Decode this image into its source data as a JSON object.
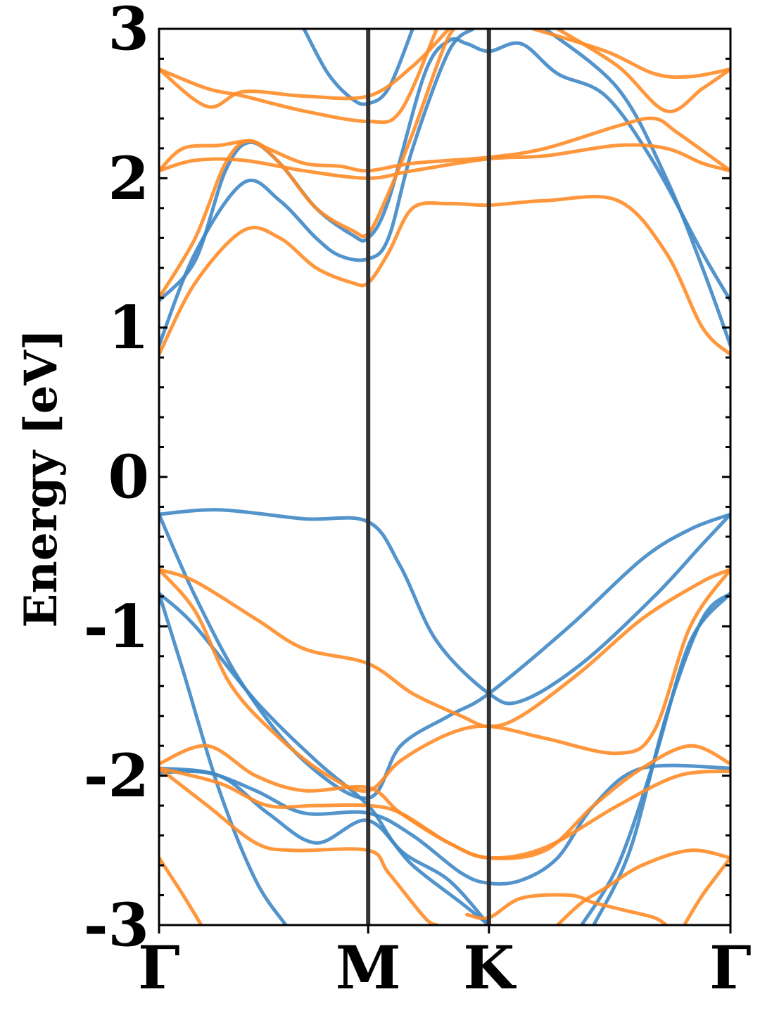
{
  "chart_data": {
    "type": "line",
    "title": "",
    "xlabel": "",
    "ylabel": "Energy [eV]",
    "ylim": [
      -3,
      3
    ],
    "yticks": [
      "-3",
      "-2",
      "-1",
      "0",
      "1",
      "2",
      "3"
    ],
    "high_symmetry_points": [
      {
        "label": "Γ",
        "k": 0.0
      },
      {
        "label": "M",
        "k": 1.732
      },
      {
        "label": "K",
        "k": 2.732
      },
      {
        "label": "Γ",
        "k": 4.732
      }
    ],
    "xlim": [
      0,
      4.732
    ],
    "grid": false,
    "colors": {
      "series_1": "#3f88c5",
      "series_2": "#ff8c28",
      "vline": "#333333"
    },
    "series": [
      {
        "color": "#3f88c5",
        "bands": [
          [
            [
              0,
              1.18
            ],
            [
              0.3,
              1.45
            ],
            [
              0.55,
              2.05
            ],
            [
              0.75,
              2.24
            ],
            [
              1.0,
              2.1
            ],
            [
              1.3,
              1.8
            ],
            [
              1.6,
              1.62
            ],
            [
              1.732,
              1.6
            ],
            [
              1.9,
              1.85
            ],
            [
              2.2,
              2.7
            ],
            [
              2.4,
              2.92
            ],
            [
              2.55,
              2.9
            ],
            [
              2.732,
              2.85
            ],
            [
              3.0,
              2.9
            ],
            [
              3.3,
              2.7
            ],
            [
              3.7,
              2.55
            ],
            [
              4.1,
              2.1
            ],
            [
              4.5,
              1.5
            ],
            [
              4.732,
              1.18
            ]
          ],
          [
            [
              0,
              0.88
            ],
            [
              0.3,
              1.5
            ],
            [
              0.7,
              1.97
            ],
            [
              1.0,
              1.85
            ],
            [
              1.3,
              1.6
            ],
            [
              1.5,
              1.48
            ],
            [
              1.732,
              1.46
            ],
            [
              1.9,
              1.6
            ],
            [
              2.1,
              2.2
            ],
            [
              2.4,
              2.85
            ],
            [
              2.6,
              3.0
            ]
          ],
          [
            [
              1.2,
              3.0
            ],
            [
              1.4,
              2.7
            ],
            [
              1.6,
              2.53
            ],
            [
              1.732,
              2.5
            ],
            [
              1.9,
              2.6
            ],
            [
              2.1,
              3.0
            ]
          ],
          [
            [
              3.2,
              3.0
            ],
            [
              3.8,
              2.6
            ],
            [
              4.2,
              2.0
            ],
            [
              4.5,
              1.4
            ],
            [
              4.732,
              0.88
            ]
          ],
          [
            [
              0,
              -0.25
            ],
            [
              0.5,
              -0.22
            ],
            [
              1.2,
              -0.28
            ],
            [
              1.732,
              -0.3
            ],
            [
              2.0,
              -0.6
            ],
            [
              2.3,
              -1.1
            ],
            [
              2.732,
              -1.45
            ],
            [
              3.0,
              -1.5
            ],
            [
              3.5,
              -1.25
            ],
            [
              4.1,
              -0.8
            ],
            [
              4.5,
              -0.45
            ],
            [
              4.732,
              -0.25
            ]
          ],
          [
            [
              0,
              -0.25
            ],
            [
              0.3,
              -0.8
            ],
            [
              0.7,
              -1.4
            ],
            [
              1.2,
              -1.9
            ],
            [
              1.732,
              -2.15
            ],
            [
              2.0,
              -1.8
            ],
            [
              2.4,
              -1.6
            ],
            [
              2.732,
              -1.45
            ],
            [
              3.4,
              -1.0
            ],
            [
              4.0,
              -0.55
            ],
            [
              4.4,
              -0.35
            ],
            [
              4.732,
              -0.25
            ]
          ],
          [
            [
              0,
              -0.78
            ],
            [
              0.3,
              -1.0
            ],
            [
              0.8,
              -1.5
            ],
            [
              1.3,
              -1.9
            ],
            [
              1.732,
              -2.2
            ],
            [
              2.0,
              -2.5
            ],
            [
              2.4,
              -2.7
            ],
            [
              2.732,
              -3.0
            ]
          ],
          [
            [
              0,
              -0.78
            ],
            [
              0.2,
              -1.3
            ],
            [
              0.5,
              -2.1
            ],
            [
              0.8,
              -2.7
            ],
            [
              1.05,
              -3.0
            ]
          ],
          [
            [
              0,
              -1.98
            ],
            [
              0.4,
              -1.98
            ],
            [
              0.8,
              -2.1
            ],
            [
              1.2,
              -2.25
            ],
            [
              1.732,
              -2.25
            ],
            [
              2.1,
              -2.4
            ],
            [
              2.5,
              -2.65
            ],
            [
              2.732,
              -2.72
            ],
            [
              3.0,
              -2.7
            ],
            [
              3.3,
              -2.55
            ],
            [
              3.6,
              -2.2
            ],
            [
              4.0,
              -1.95
            ],
            [
              4.732,
              -1.95
            ]
          ],
          [
            [
              0,
              -1.95
            ],
            [
              0.5,
              -2.0
            ],
            [
              0.9,
              -2.25
            ],
            [
              1.3,
              -2.45
            ],
            [
              1.732,
              -2.3
            ],
            [
              2.1,
              -2.6
            ],
            [
              2.5,
              -2.85
            ],
            [
              2.732,
              -3.0
            ]
          ],
          [
            [
              3.6,
              -3.0
            ],
            [
              3.9,
              -2.5
            ],
            [
              4.2,
              -1.6
            ],
            [
              4.5,
              -0.95
            ],
            [
              4.732,
              -0.78
            ]
          ],
          [
            [
              3.5,
              -3.0
            ],
            [
              3.8,
              -2.6
            ],
            [
              4.1,
              -1.9
            ],
            [
              4.4,
              -1.1
            ],
            [
              4.732,
              -0.78
            ]
          ]
        ]
      },
      {
        "color": "#ff8c28",
        "bands": [
          [
            [
              0,
              0.82
            ],
            [
              0.3,
              1.3
            ],
            [
              0.7,
              1.65
            ],
            [
              1.0,
              1.6
            ],
            [
              1.3,
              1.4
            ],
            [
              1.6,
              1.3
            ],
            [
              1.732,
              1.3
            ],
            [
              1.9,
              1.5
            ],
            [
              2.1,
              1.8
            ],
            [
              2.4,
              1.83
            ],
            [
              2.732,
              1.82
            ],
            [
              3.2,
              1.85
            ],
            [
              3.8,
              1.85
            ],
            [
              4.2,
              1.5
            ],
            [
              4.5,
              1.0
            ],
            [
              4.732,
              0.82
            ]
          ],
          [
            [
              0,
              1.2
            ],
            [
              0.3,
              1.6
            ],
            [
              0.55,
              2.1
            ],
            [
              0.75,
              2.25
            ],
            [
              1.0,
              2.1
            ],
            [
              1.3,
              1.8
            ],
            [
              1.6,
              1.65
            ],
            [
              1.732,
              1.63
            ],
            [
              1.9,
              1.9
            ],
            [
              2.1,
              2.3
            ],
            [
              2.4,
              2.95
            ],
            [
              2.55,
              3.0
            ]
          ],
          [
            [
              0,
              2.05
            ],
            [
              0.3,
              2.12
            ],
            [
              0.7,
              2.12
            ],
            [
              1.2,
              2.05
            ],
            [
              1.732,
              2.0
            ],
            [
              2.1,
              2.05
            ],
            [
              2.732,
              2.13
            ],
            [
              3.2,
              2.15
            ],
            [
              3.8,
              2.22
            ],
            [
              4.2,
              2.2
            ],
            [
              4.5,
              2.1
            ],
            [
              4.732,
              2.05
            ]
          ],
          [
            [
              0,
              2.05
            ],
            [
              0.2,
              2.2
            ],
            [
              0.5,
              2.22
            ],
            [
              0.75,
              2.25
            ],
            [
              0.9,
              2.2
            ],
            [
              1.2,
              2.1
            ],
            [
              1.5,
              2.08
            ],
            [
              1.732,
              2.05
            ],
            [
              2.1,
              2.1
            ],
            [
              2.732,
              2.14
            ],
            [
              3.2,
              2.2
            ],
            [
              3.8,
              2.35
            ],
            [
              4.1,
              2.4
            ],
            [
              4.3,
              2.3
            ],
            [
              4.732,
              2.05
            ]
          ],
          [
            [
              0,
              2.73
            ],
            [
              0.4,
              2.6
            ],
            [
              0.7,
              2.55
            ],
            [
              1.2,
              2.45
            ],
            [
              1.732,
              2.38
            ],
            [
              2.0,
              2.45
            ],
            [
              2.3,
              3.0
            ]
          ],
          [
            [
              0,
              2.73
            ],
            [
              0.4,
              2.48
            ],
            [
              0.7,
              2.58
            ],
            [
              1.2,
              2.55
            ],
            [
              1.732,
              2.55
            ],
            [
              2.1,
              2.75
            ],
            [
              2.4,
              3.0
            ]
          ],
          [
            [
              3.3,
              3.0
            ],
            [
              3.8,
              2.75
            ],
            [
              4.2,
              2.45
            ],
            [
              4.5,
              2.6
            ],
            [
              4.732,
              2.73
            ]
          ],
          [
            [
              3.1,
              3.0
            ],
            [
              3.7,
              2.85
            ],
            [
              4.1,
              2.7
            ],
            [
              4.4,
              2.68
            ],
            [
              4.732,
              2.73
            ]
          ],
          [
            [
              0,
              -0.62
            ],
            [
              0.3,
              -0.7
            ],
            [
              0.8,
              -0.95
            ],
            [
              1.2,
              -1.15
            ],
            [
              1.732,
              -1.25
            ],
            [
              2.1,
              -1.45
            ],
            [
              2.5,
              -1.6
            ],
            [
              2.732,
              -1.67
            ],
            [
              3.0,
              -1.6
            ],
            [
              3.5,
              -1.3
            ],
            [
              4.0,
              -0.95
            ],
            [
              4.5,
              -0.7
            ],
            [
              4.732,
              -0.62
            ]
          ],
          [
            [
              0,
              -0.62
            ],
            [
              0.3,
              -0.9
            ],
            [
              0.6,
              -1.4
            ],
            [
              1.0,
              -1.75
            ],
            [
              1.4,
              -2.0
            ],
            [
              1.732,
              -2.1
            ],
            [
              2.0,
              -1.9
            ],
            [
              2.4,
              -1.72
            ],
            [
              2.732,
              -1.67
            ],
            [
              3.2,
              -1.75
            ],
            [
              3.8,
              -1.85
            ],
            [
              4.1,
              -1.7
            ],
            [
              4.4,
              -1.0
            ],
            [
              4.732,
              -0.62
            ]
          ],
          [
            [
              0,
              -1.92
            ],
            [
              0.4,
              -1.8
            ],
            [
              0.8,
              -2.0
            ],
            [
              1.2,
              -2.1
            ],
            [
              1.732,
              -2.08
            ],
            [
              2.0,
              -2.25
            ],
            [
              2.4,
              -2.45
            ],
            [
              2.732,
              -2.55
            ],
            [
              3.2,
              -2.5
            ],
            [
              3.6,
              -2.2
            ],
            [
              4.0,
              -1.95
            ],
            [
              4.4,
              -1.8
            ],
            [
              4.732,
              -1.92
            ]
          ],
          [
            [
              0,
              -1.95
            ],
            [
              0.5,
              -2.05
            ],
            [
              0.9,
              -2.2
            ],
            [
              1.3,
              -2.2
            ],
            [
              1.732,
              -2.2
            ],
            [
              2.0,
              -2.25
            ],
            [
              2.4,
              -2.45
            ],
            [
              2.732,
              -2.55
            ],
            [
              3.2,
              -2.48
            ],
            [
              3.8,
              -2.2
            ],
            [
              4.3,
              -2.0
            ],
            [
              4.732,
              -1.97
            ]
          ],
          [
            [
              0,
              -1.95
            ],
            [
              0.4,
              -2.2
            ],
            [
              0.8,
              -2.45
            ],
            [
              1.1,
              -2.5
            ],
            [
              1.732,
              -2.5
            ],
            [
              1.9,
              -2.65
            ],
            [
              2.2,
              -2.95
            ],
            [
              2.3,
              -3.0
            ]
          ],
          [
            [
              0,
              -2.55
            ],
            [
              0.2,
              -2.8
            ],
            [
              0.35,
              -3.0
            ]
          ],
          [
            [
              4.732,
              -2.55
            ],
            [
              4.5,
              -2.8
            ],
            [
              4.35,
              -3.0
            ]
          ],
          [
            [
              2.55,
              -2.93
            ],
            [
              2.732,
              -2.95
            ],
            [
              3.0,
              -2.82
            ],
            [
              3.4,
              -2.8
            ],
            [
              3.6,
              -2.85
            ],
            [
              3.85,
              -2.9
            ],
            [
              4.1,
              -2.95
            ],
            [
              4.2,
              -3.0
            ]
          ],
          [
            [
              3.3,
              -3.0
            ],
            [
              3.5,
              -2.85
            ],
            [
              3.7,
              -2.75
            ],
            [
              4.0,
              -2.6
            ],
            [
              4.4,
              -2.5
            ],
            [
              4.732,
              -2.55
            ]
          ]
        ]
      }
    ]
  }
}
